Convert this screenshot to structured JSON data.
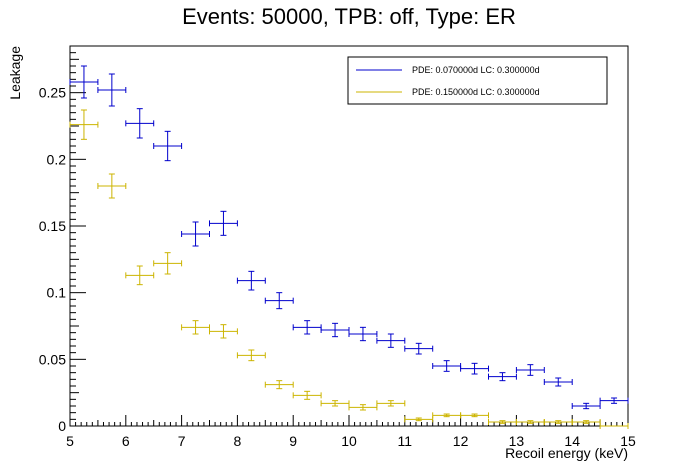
{
  "chart_data": {
    "type": "scatter",
    "title": "Events: 50000, TPB: off, Type: ER",
    "xlabel": "Recoil energy (keV)",
    "ylabel": "Leakage",
    "xlim": [
      5,
      15
    ],
    "ylim": [
      0,
      0.285
    ],
    "x_ticks": [
      "5",
      "6",
      "7",
      "8",
      "9",
      "10",
      "11",
      "12",
      "13",
      "14",
      "15"
    ],
    "y_ticks": [
      "0",
      "0.05",
      "0.1",
      "0.15",
      "0.2",
      "0.25"
    ],
    "grid": false,
    "legend_position": "top-right",
    "series": [
      {
        "name": "PDE: 0.070000d LC: 0.300000d",
        "color": "#0000cc",
        "x": [
          5.25,
          5.75,
          6.25,
          6.75,
          7.25,
          7.75,
          8.25,
          8.75,
          9.25,
          9.75,
          10.25,
          10.75,
          11.25,
          11.75,
          12.25,
          12.75,
          13.25,
          13.75,
          14.25,
          14.75
        ],
        "y": [
          0.258,
          0.252,
          0.227,
          0.21,
          0.144,
          0.152,
          0.109,
          0.094,
          0.074,
          0.072,
          0.069,
          0.064,
          0.058,
          0.045,
          0.043,
          0.037,
          0.042,
          0.033,
          0.015,
          0.019
        ],
        "yerr": [
          0.012,
          0.012,
          0.011,
          0.011,
          0.009,
          0.009,
          0.007,
          0.006,
          0.005,
          0.005,
          0.005,
          0.005,
          0.004,
          0.004,
          0.004,
          0.003,
          0.004,
          0.003,
          0.002,
          0.002
        ]
      },
      {
        "name": "PDE: 0.150000d LC: 0.300000d",
        "color": "#ccb400",
        "x": [
          5.25,
          5.75,
          6.25,
          6.75,
          7.25,
          7.75,
          8.25,
          8.75,
          9.25,
          9.75,
          10.25,
          10.75,
          11.25,
          11.75,
          12.25,
          12.75,
          13.25,
          13.75,
          14.25,
          14.75
        ],
        "y": [
          0.226,
          0.18,
          0.113,
          0.122,
          0.074,
          0.071,
          0.053,
          0.031,
          0.023,
          0.017,
          0.014,
          0.017,
          0.005,
          0.008,
          0.008,
          0.003,
          0.003,
          0.003,
          0.003,
          0.0
        ],
        "yerr": [
          0.011,
          0.009,
          0.007,
          0.008,
          0.005,
          0.005,
          0.004,
          0.003,
          0.003,
          0.002,
          0.002,
          0.002,
          0.001,
          0.001,
          0.001,
          0.001,
          0.001,
          0.001,
          0.001,
          0.0
        ]
      }
    ]
  }
}
